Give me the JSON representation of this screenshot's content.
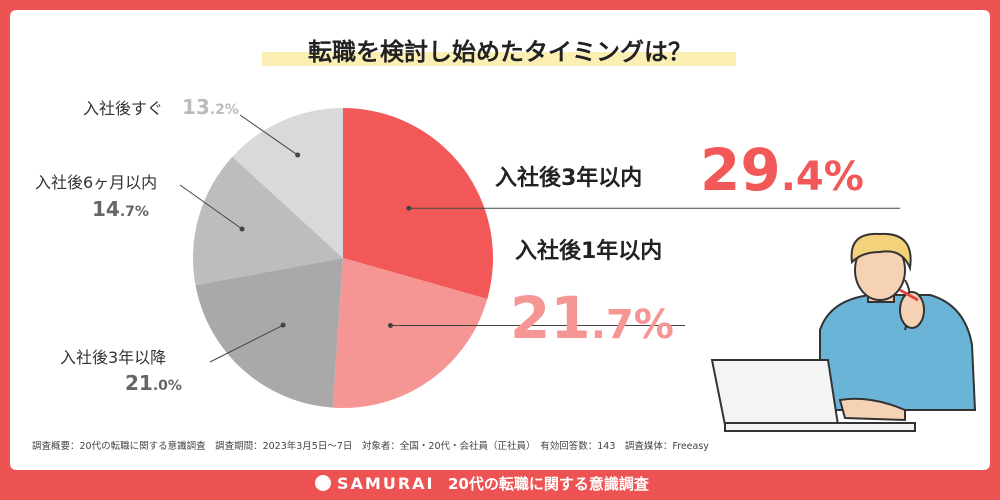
{
  "chart_data": {
    "type": "pie",
    "title": "転職を検討し始めたタイミングは？",
    "categories": [
      "入社後3年以内",
      "入社後1年以内",
      "入社後3年以降",
      "入社後6ヶ月以内",
      "入社後すぐ"
    ],
    "values": [
      29.4,
      21.7,
      21.0,
      14.7,
      13.2
    ],
    "value_labels": [
      "29.4%",
      "21.7%",
      "21.0%",
      "14.7%",
      "13.2%"
    ],
    "colors": [
      "#f25858",
      "#f59694",
      "#a9a9a9",
      "#bdbdbd",
      "#d9d9d9"
    ]
  },
  "footnote": "調査概要：20代の転職に関する意識調査　調査期間：2023年3月5日〜7日　対象者：全国・20代・会社員（正社員）　有効回答数：143　調査媒体：Freeasy",
  "footer": {
    "brand": "SAMURAI",
    "title": "20代の転職に関する意識調査"
  }
}
